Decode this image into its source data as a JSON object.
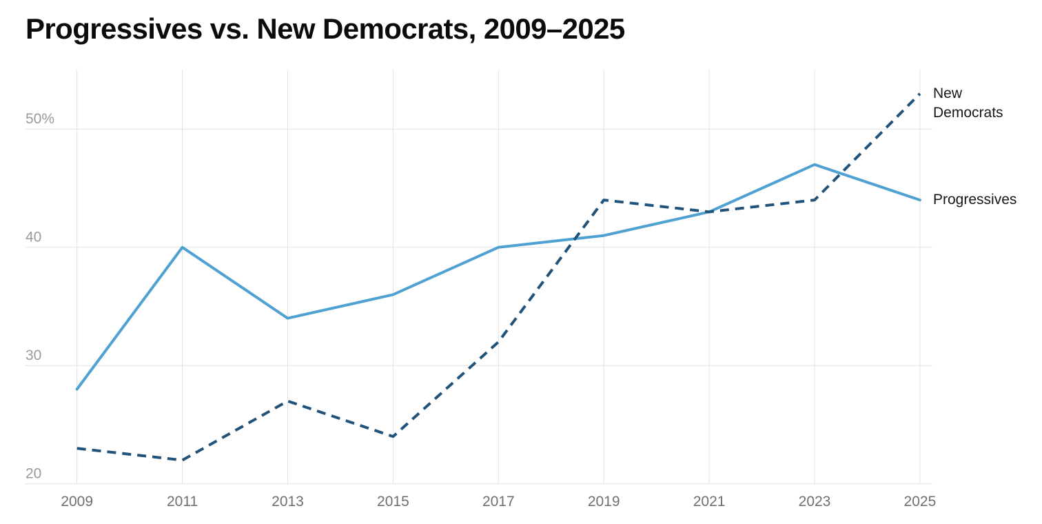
{
  "chart_data": {
    "type": "line",
    "title": "Progressives vs. New Democrats, 2009–2025",
    "xlabel": "",
    "ylabel": "",
    "x": [
      2009,
      2011,
      2013,
      2015,
      2017,
      2019,
      2021,
      2023,
      2025
    ],
    "x_tick_labels": [
      "2009",
      "2011",
      "2013",
      "2015",
      "2017",
      "2019",
      "2021",
      "2023",
      "2025"
    ],
    "y_ticks": [
      {
        "value": 20,
        "label": "20"
      },
      {
        "value": 30,
        "label": "30"
      },
      {
        "value": 40,
        "label": "40"
      },
      {
        "value": 50,
        "label": "50%"
      }
    ],
    "ylim": [
      20,
      55
    ],
    "grid": true,
    "legend_position": "end-of-line-labels",
    "series": [
      {
        "name": "Progressives",
        "label_lines": [
          "Progressives"
        ],
        "style": "solid",
        "color": "#4FA1D1",
        "values": [
          28,
          40,
          34,
          36,
          40,
          41,
          43,
          47,
          44
        ]
      },
      {
        "name": "New Democrats",
        "label_lines": [
          "New",
          "Democrats"
        ],
        "style": "dashed",
        "color": "#215279",
        "values": [
          23,
          22,
          27,
          24,
          32,
          44,
          43,
          44,
          53
        ]
      }
    ],
    "colors": {
      "grid": "#E2E2E2",
      "y_tick_label": "#9A9A9A",
      "x_tick_label": "#6F6F6F",
      "series_label": "#161616",
      "title": "#0B0B0B"
    }
  }
}
